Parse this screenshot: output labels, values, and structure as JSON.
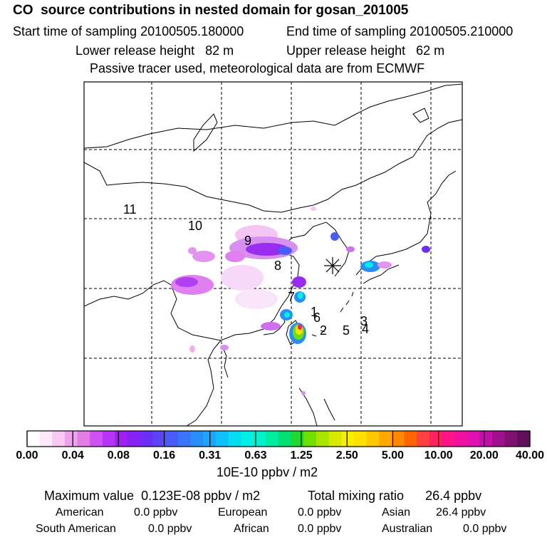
{
  "header": {
    "species": "CO",
    "title": "source contributions in nested domain for gosan_201005",
    "start_label": "Start time of sampling",
    "start_value": "20100505.180000",
    "end_label": "End time of sampling",
    "end_value": "20100505.210000",
    "lower_label": "Lower release height",
    "lower_value": "82 m",
    "upper_label": "Upper release height",
    "upper_value": "62 m",
    "note": "Passive tracer used, meteorological data are from ECMWF"
  },
  "map": {
    "region_labels": [
      "11",
      "10",
      "9",
      "8",
      "7",
      "1",
      "6",
      "2",
      "5",
      "3",
      "4"
    ],
    "receptor_marker": "asterisk-receptor-icon"
  },
  "colorbar": {
    "tick_labels": [
      "0.00",
      "0.04",
      "0.08",
      "0.16",
      "0.31",
      "0.63",
      "1.25",
      "2.50",
      "5.00",
      "10.00",
      "20.00",
      "40.00"
    ],
    "colors": [
      "#ffffff",
      "#fde9fb",
      "#f8c8f3",
      "#f0a0ec",
      "#e37ce6",
      "#d050f0",
      "#b733f5",
      "#9f1ff5",
      "#8622f5",
      "#6c2ff5",
      "#5a44f6",
      "#4a5cf7",
      "#3a74f8",
      "#2a8ef9",
      "#1ca6fa",
      "#10c0f8",
      "#05dcf2",
      "#00f0e6",
      "#00f2cc",
      "#00ec9e",
      "#00e070",
      "#20d830",
      "#70e000",
      "#a8e600",
      "#d8ea00",
      "#f6f000",
      "#ffe000",
      "#ffc800",
      "#ffa800",
      "#ff8800",
      "#ff6400",
      "#ff4040",
      "#ff2060",
      "#ff1488",
      "#f010a0",
      "#e010b0",
      "#c010a8",
      "#a0108c",
      "#801070",
      "#601058"
    ],
    "unit": "10E-10 ppbv / m2"
  },
  "stats": {
    "max_label": "Maximum value",
    "max_value": "0.123E-08 ppbv / m2",
    "total_label": "Total mixing ratio",
    "total_value": "26.4 ppbv",
    "regions": [
      {
        "name": "American",
        "value": "0.0 ppbv"
      },
      {
        "name": "European",
        "value": "0.0 ppbv"
      },
      {
        "name": "Asian",
        "value": "26.4 ppbv"
      },
      {
        "name": "South American",
        "value": "0.0 ppbv"
      },
      {
        "name": "African",
        "value": "0.0 ppbv"
      },
      {
        "name": "Australian",
        "value": "0.0 ppbv"
      }
    ]
  }
}
